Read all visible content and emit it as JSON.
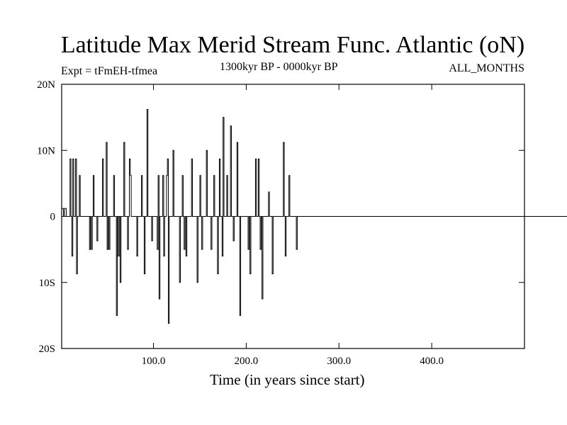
{
  "header": {
    "title": "Latitude Max Merid Stream Func. Atlantic (oN)",
    "left_label": "Expt = tFmEH-tfmea",
    "center_label": "1300kyr BP - 0000kyr BP",
    "right_label": "ALL_MONTHS"
  },
  "chart_data": {
    "type": "line",
    "title": "Latitude Max Merid Stream Func. Atlantic (oN)",
    "xlabel": "Time (in years since start)",
    "ylabel": "",
    "xlim": [
      1,
      500
    ],
    "ylim": [
      -20,
      20
    ],
    "x_ticks": [
      100,
      200,
      300,
      400
    ],
    "x_tick_labels": [
      "100.0",
      "200.0",
      "300.0",
      "400.0"
    ],
    "y_ticks": [
      20,
      10,
      0,
      -10,
      -20
    ],
    "y_tick_labels": [
      "20N",
      "10N",
      "0",
      "10S",
      "20S"
    ],
    "grid": false,
    "legend": "none",
    "series": [
      {
        "name": "tFmEH-tfmea",
        "step": true,
        "x_start": 1,
        "x_step": 1,
        "values": [
          1.2,
          1.2,
          0,
          1.2,
          1.2,
          0,
          0,
          0,
          0,
          8.7,
          0,
          -6,
          8.7,
          0,
          0,
          8.7,
          -8.7,
          0,
          0,
          6.2,
          0,
          0,
          0,
          0,
          0,
          0,
          0,
          0,
          0,
          0,
          -5,
          0,
          -5,
          0,
          6.2,
          0,
          0,
          0,
          -3.7,
          0,
          0,
          0,
          0,
          0,
          8.7,
          0,
          0,
          0,
          11.2,
          -5,
          0,
          -5,
          0,
          0,
          0,
          0,
          6.2,
          0,
          0,
          -15,
          0,
          -6,
          0,
          -10,
          0,
          0,
          0,
          11.2,
          0,
          0,
          0,
          -5,
          0,
          8.7,
          6.2,
          0,
          0,
          0,
          0,
          0,
          0,
          -6,
          0,
          0,
          0,
          0,
          6.2,
          0,
          0,
          -8.7,
          0,
          0,
          16.2,
          0,
          0,
          0,
          0,
          -3.7,
          0,
          0,
          0,
          0,
          0,
          -5,
          6.2,
          -12.5,
          0,
          0,
          0,
          6.2,
          -6,
          0,
          0,
          6.2,
          8.7,
          -16.2,
          0,
          0,
          0,
          0,
          10,
          0,
          0,
          0,
          0,
          0,
          0,
          -10,
          0,
          0,
          6.2,
          0,
          -5,
          0,
          -6,
          0,
          0,
          0,
          0,
          0,
          8.7,
          0,
          0,
          0,
          0,
          0,
          -10,
          0,
          0,
          6.2,
          0,
          -5,
          0,
          0,
          0,
          0,
          10,
          0,
          0,
          0,
          0,
          -5,
          0,
          0,
          6.2,
          0,
          0,
          0,
          -8.7,
          0,
          8.7,
          0,
          0,
          -6,
          15,
          0,
          0,
          0,
          6.2,
          0,
          0,
          0,
          13.7,
          0,
          0,
          -3.7,
          0,
          0,
          0,
          11.2,
          0,
          0,
          -15,
          0,
          0,
          0,
          0,
          0,
          0,
          0,
          0,
          -5,
          0,
          -8.7,
          0,
          0,
          0,
          0,
          0,
          8.7,
          0,
          0,
          8.7,
          0,
          -5,
          0,
          -12.5,
          0,
          0,
          0,
          0,
          0,
          0,
          3.7,
          0,
          0,
          0,
          -8.7,
          0,
          0,
          0,
          0,
          0,
          0,
          0,
          0,
          0,
          0,
          0,
          11.2,
          0,
          -6,
          0,
          0,
          0,
          6.2,
          0,
          0,
          0,
          0,
          0,
          0,
          0,
          -5,
          0,
          0,
          0,
          0,
          0,
          0,
          0,
          0,
          0,
          0,
          0,
          0,
          0,
          0,
          0,
          0,
          0,
          0,
          0,
          0,
          0,
          0,
          0,
          0,
          0,
          0,
          0,
          0,
          0,
          0,
          0,
          0,
          0,
          0,
          0,
          0,
          0,
          0,
          0,
          0,
          0,
          0,
          0,
          0,
          0,
          0,
          0,
          0,
          0,
          0,
          0,
          0,
          0,
          0,
          0,
          0,
          0,
          0,
          0,
          0,
          0,
          0,
          0,
          0,
          0,
          0,
          0,
          0,
          0,
          0,
          0,
          0,
          0,
          0,
          0,
          0,
          0,
          0,
          0,
          0,
          0,
          0,
          0,
          0,
          0,
          0,
          0,
          0,
          0,
          0,
          0,
          0,
          0,
          0,
          0,
          0,
          0,
          0,
          0,
          0,
          0,
          0,
          0,
          0,
          0,
          0,
          0,
          0,
          0,
          0,
          0,
          0,
          0,
          0,
          0,
          0,
          0,
          0,
          0,
          0,
          0,
          0,
          0,
          0,
          0,
          0,
          0,
          0,
          0,
          0,
          0,
          0,
          0,
          0,
          0,
          0,
          0,
          0,
          0,
          0,
          0,
          0,
          0,
          0,
          0,
          0,
          0,
          0,
          0,
          0,
          0,
          0,
          0,
          0,
          0,
          0,
          0,
          0,
          0,
          0,
          0,
          0,
          0,
          0,
          0,
          0,
          0,
          0,
          0,
          0,
          0,
          0,
          0,
          0,
          0,
          0,
          0,
          0,
          0,
          0,
          0,
          0,
          0,
          0,
          0,
          0,
          0,
          0,
          0,
          0,
          0,
          0,
          0,
          0,
          0,
          0,
          0,
          0,
          0,
          0,
          0,
          0,
          0,
          0,
          0,
          0,
          0,
          0,
          0,
          0,
          0,
          0,
          0,
          0,
          0,
          0,
          0,
          0,
          0,
          0,
          0,
          0,
          0,
          0,
          0,
          0,
          0,
          0,
          0,
          0,
          0,
          0,
          0,
          0,
          0,
          0,
          0,
          0,
          0,
          0,
          0,
          0,
          0,
          0,
          0,
          0,
          0,
          0,
          0,
          0,
          0,
          0,
          0,
          0,
          0,
          0,
          0,
          0,
          0,
          0,
          0,
          0,
          0,
          0,
          0,
          0,
          0,
          0,
          0,
          0,
          0,
          0,
          0,
          0,
          0,
          0,
          0,
          0,
          0,
          0,
          0,
          0,
          0,
          0,
          0,
          0,
          0,
          0,
          0,
          0,
          0,
          0,
          0,
          0,
          0,
          0,
          0,
          0,
          0,
          0,
          0,
          0,
          0,
          0,
          0,
          0,
          0,
          0,
          0,
          0,
          0,
          0,
          0,
          0,
          0,
          0,
          0,
          0,
          0,
          0,
          0,
          0
        ]
      }
    ]
  }
}
